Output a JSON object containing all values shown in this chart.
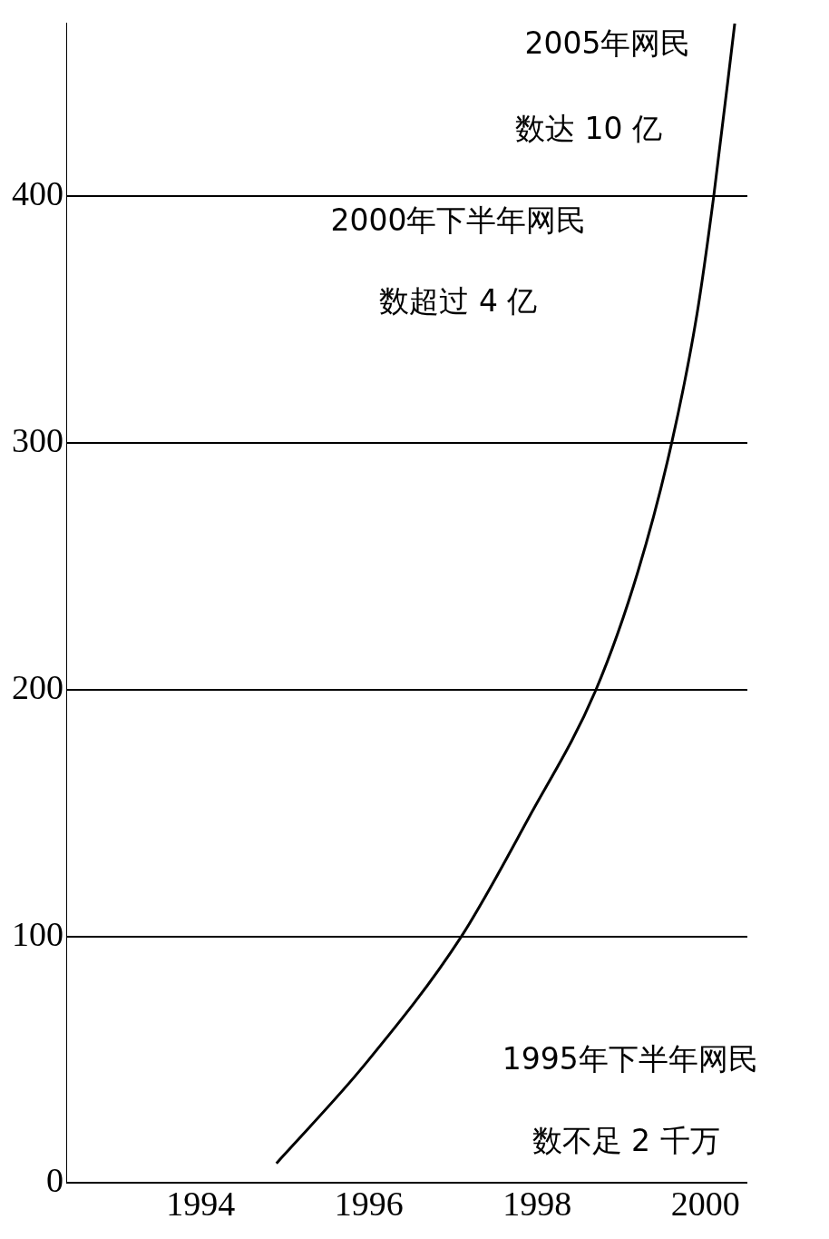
{
  "chart_data": {
    "type": "line",
    "x": [
      1994.9,
      1995.95,
      1997.1,
      1997.9,
      1998.7,
      1999.2,
      1999.6,
      1999.9,
      2000.1,
      2000.35
    ],
    "series": [
      {
        "color": "#000000",
        "values": [
          8,
          48,
          100,
          148,
          200,
          248,
          300,
          352,
          400,
          470
        ]
      }
    ],
    "xlim": [
      1992.4,
      2000.5
    ],
    "xticks": [
      1994,
      1996,
      1998,
      2000
    ],
    "ylim": [
      0,
      470
    ],
    "yticks": [
      0,
      100,
      200,
      300,
      400
    ],
    "grid": "y",
    "legend": false,
    "marker": "none",
    "line_style": "solid",
    "annotations": [
      "2005年网民",
      "数达 10 亿",
      "2000年下半年网民",
      "数超过 4 亿",
      "1995年下半年网民",
      "数不足 2 千万"
    ]
  }
}
